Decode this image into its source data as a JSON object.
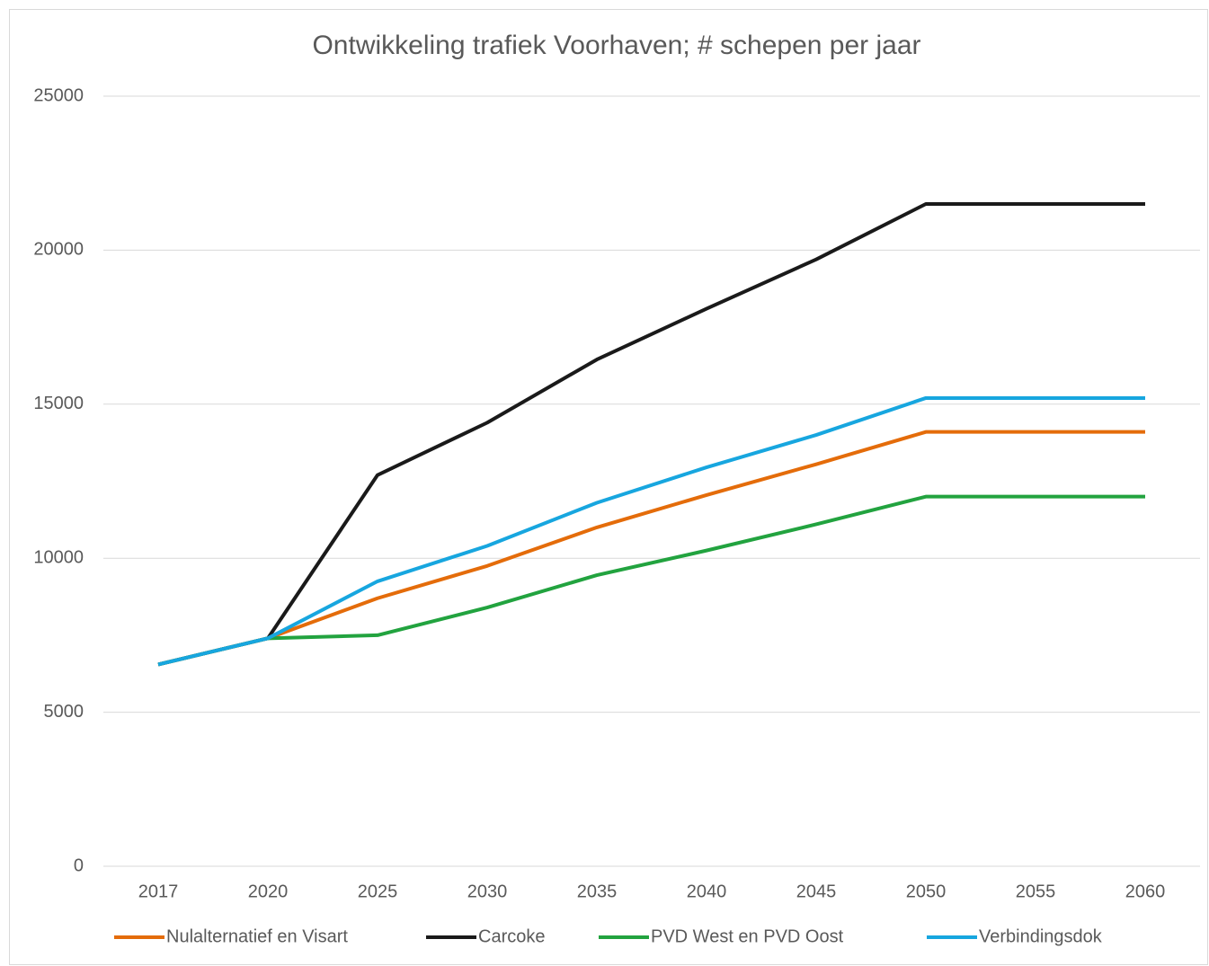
{
  "chart_data": {
    "type": "line",
    "title": "Ontwikkeling trafiek Voorhaven; # schepen per jaar",
    "categories": [
      "2017",
      "2020",
      "2025",
      "2030",
      "2035",
      "2040",
      "2045",
      "2050",
      "2055",
      "2060"
    ],
    "series": [
      {
        "name": "Nulalternatief en Visart",
        "color": "#e46c0a",
        "values": [
          6550,
          7400,
          8700,
          9750,
          11000,
          12050,
          13050,
          14100,
          14100,
          14100
        ]
      },
      {
        "name": "Carcoke",
        "color": "#1a1a1a",
        "values": [
          6550,
          7400,
          12700,
          14400,
          16450,
          18100,
          19700,
          21500,
          21500,
          21500
        ]
      },
      {
        "name": "PVD West en PVD Oost",
        "color": "#22a33f",
        "values": [
          6550,
          7400,
          7500,
          8400,
          9450,
          10250,
          11100,
          12000,
          12000,
          12000
        ]
      },
      {
        "name": "Verbindingsdok",
        "color": "#17a6df",
        "values": [
          6550,
          7400,
          9250,
          10400,
          11800,
          12950,
          14000,
          15200,
          15200,
          15200
        ]
      }
    ],
    "ylim": [
      0,
      25000
    ],
    "yticks": [
      0,
      5000,
      10000,
      15000,
      20000,
      25000
    ],
    "grid": true,
    "legend": "bottom"
  }
}
